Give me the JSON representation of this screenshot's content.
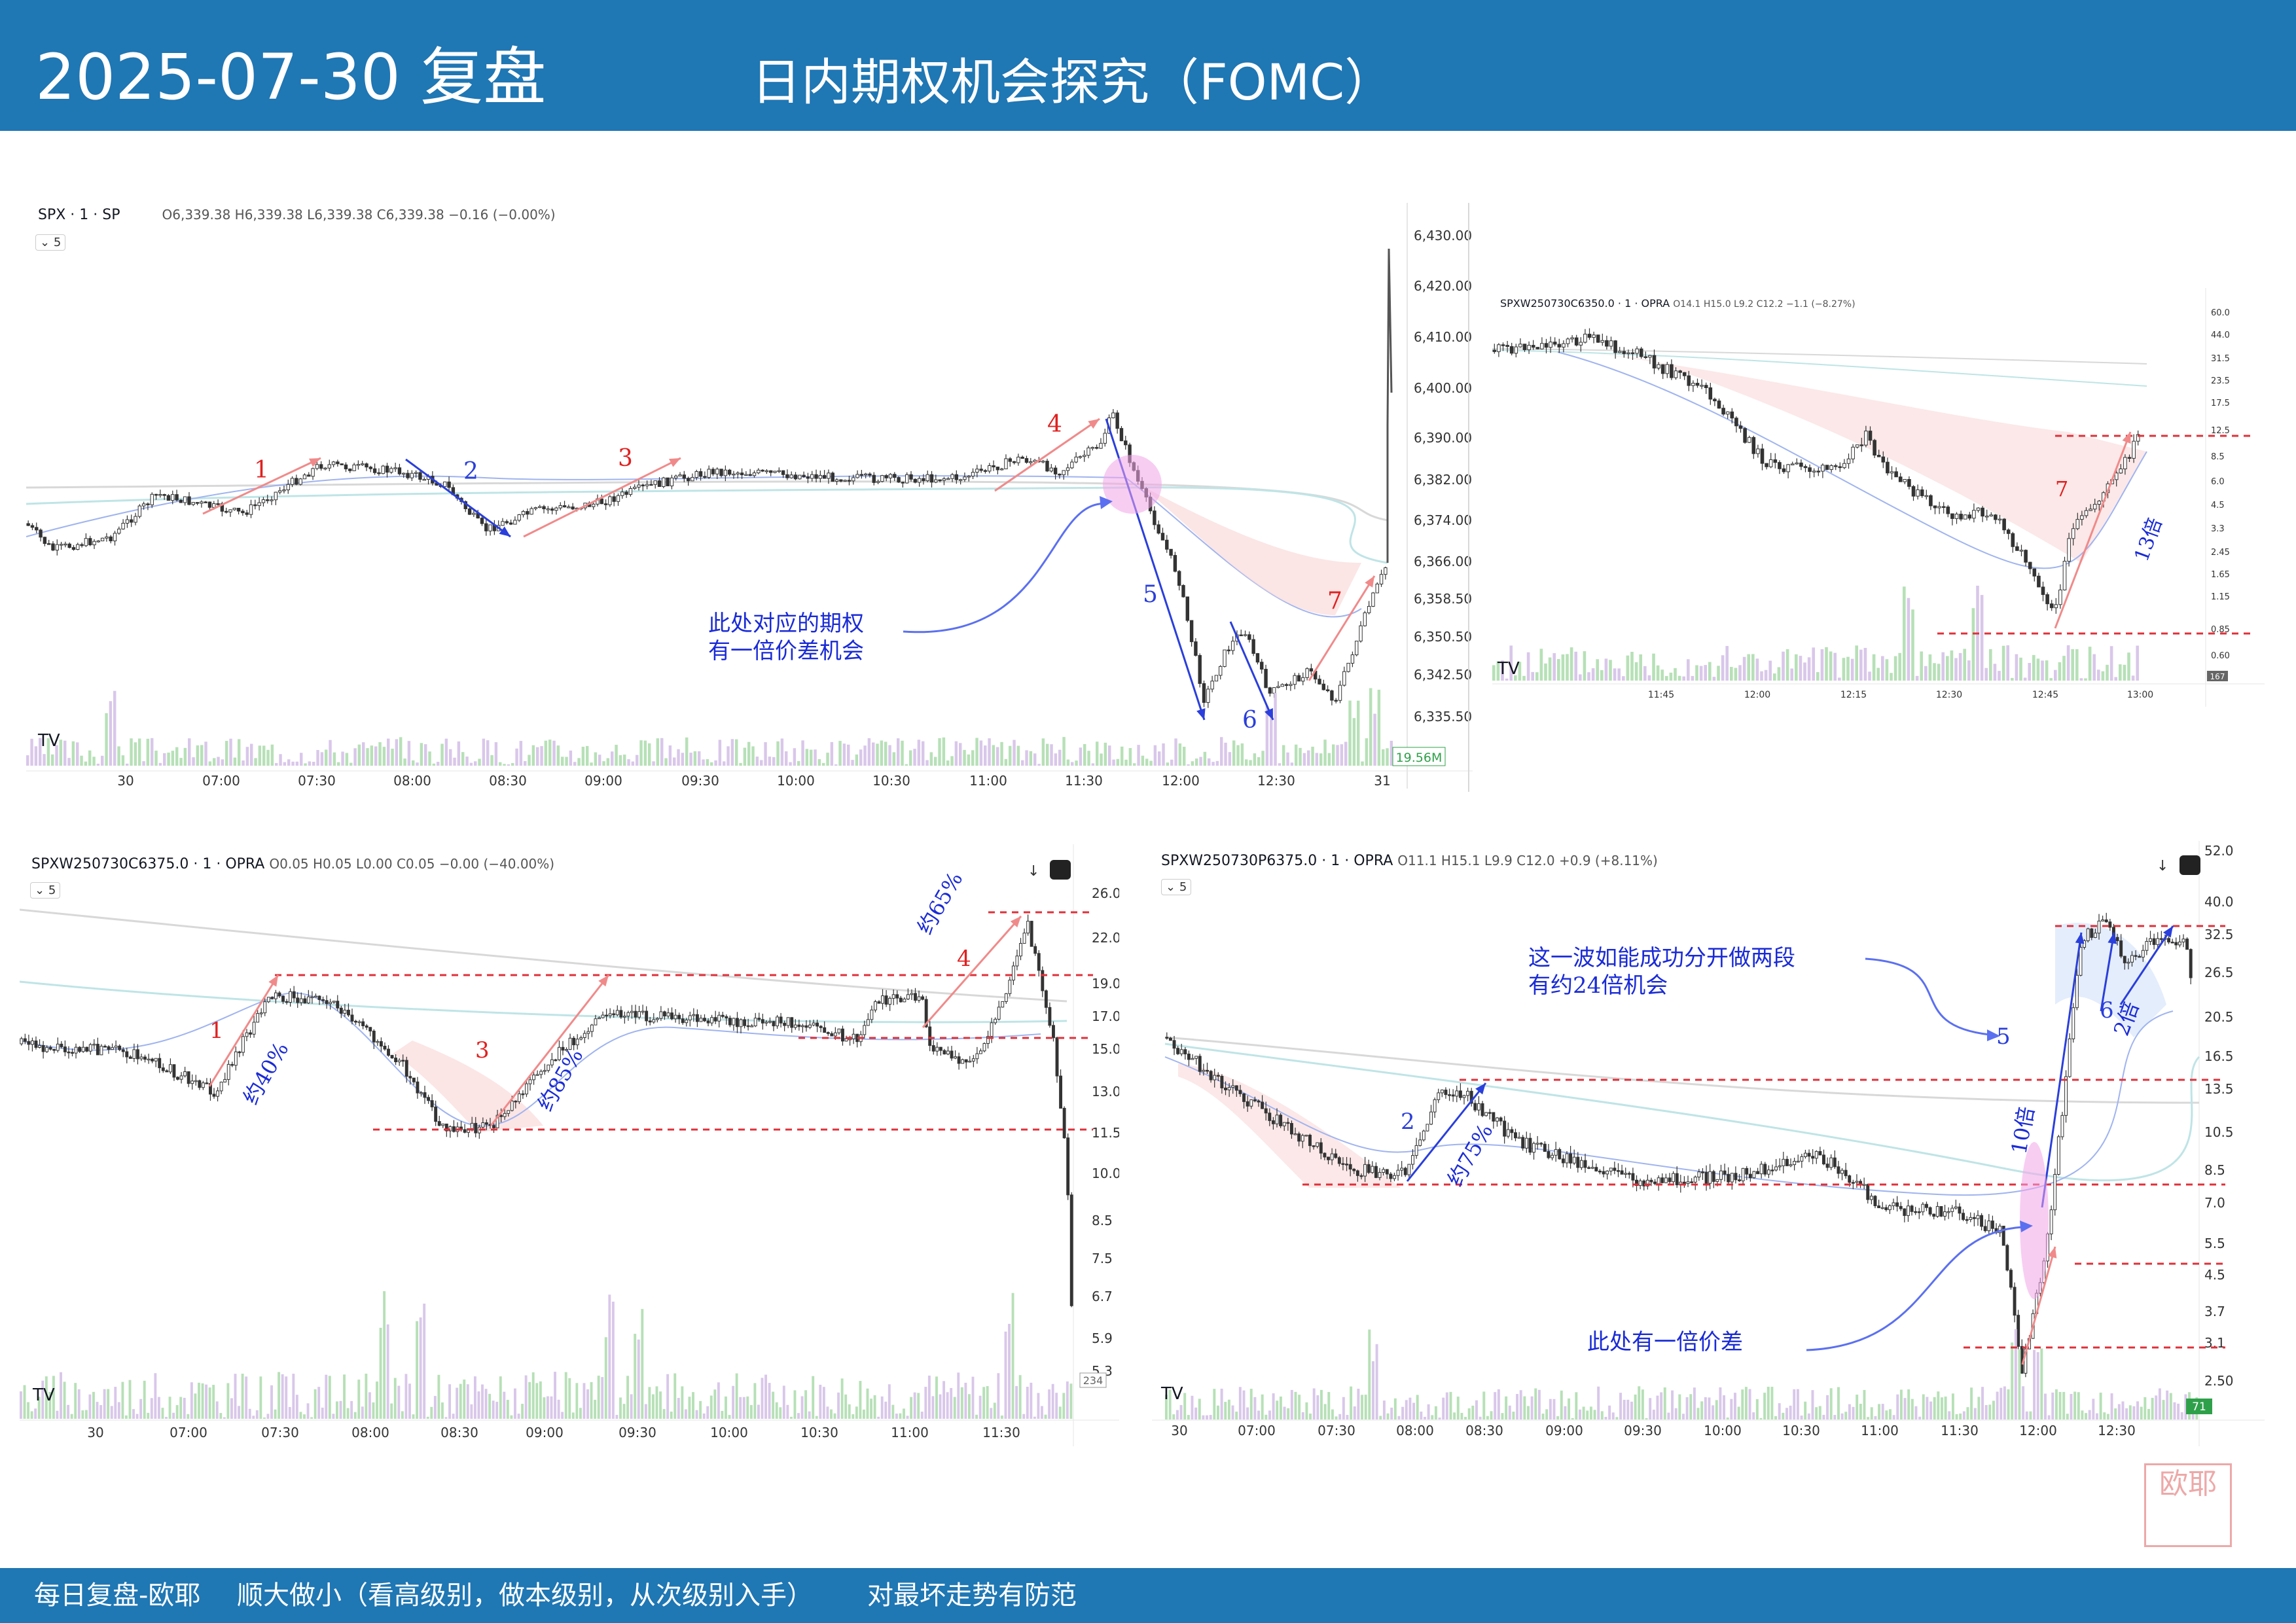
{
  "header": {
    "date": "2025-07-30 复盘",
    "title": "日内期权机会探究（FOMC）"
  },
  "footer": {
    "left": "每日复盘-欧耶",
    "middle": "顺大做小（看高级别，做本级别，从次级别入手）",
    "right": "对最坏走势有防范"
  },
  "seal_text": "欧耶",
  "colors": {
    "brand_blue": "#1f77b4",
    "up_red": "#e05050",
    "down_blue": "#2a3fdb",
    "note_blue": "#1a2bd6"
  },
  "panel_spx": {
    "symbol": "SPX · 1 · SP",
    "ohlc": "O6,339.38 H6,339.38 L6,339.38 C6,339.38 −0.16 (−0.00%)",
    "interval": "5",
    "y_ticks": [
      "6,430.00",
      "6,420.00",
      "6,410.00",
      "6,400.00",
      "6,390.00",
      "6,382.00",
      "6,374.00",
      "6,366.00",
      "6,358.50",
      "6,350.50",
      "6,342.50",
      "6,335.50"
    ],
    "x_ticks": [
      "30",
      "07:00",
      "07:30",
      "08:00",
      "08:30",
      "09:00",
      "09:30",
      "10:00",
      "10:30",
      "11:00",
      "11:30",
      "12:00",
      "12:30",
      "31"
    ],
    "volume_badge": "19.56M",
    "wave_labels": [
      "1",
      "2",
      "3",
      "4",
      "5",
      "6",
      "7"
    ],
    "note": [
      "此处对应的期权",
      "有一倍价差机会"
    ]
  },
  "panel_c6350": {
    "symbol": "SPXW250730C6350.0 · 1 · OPRA",
    "ohlc": "O14.1 H15.0 L9.2 C12.2 −1.1 (−8.27%)",
    "y_ticks": [
      "60.0",
      "44.0",
      "31.5",
      "23.5",
      "17.5",
      "12.5",
      "8.5",
      "6.0",
      "4.5",
      "3.3",
      "2.45",
      "1.65",
      "1.15",
      "0.85",
      "0.60"
    ],
    "x_ticks": [
      "11:45",
      "12:00",
      "12:15",
      "12:30",
      "12:45",
      "13:00"
    ],
    "volume_badge": "167",
    "wave_labels": [
      "7"
    ],
    "multiple": "13倍"
  },
  "panel_c6375": {
    "symbol": "SPXW250730C6375.0 · 1 · OPRA",
    "ohlc": "O0.05 H0.05 L0.00 C0.05 −0.00 (−40.00%)",
    "interval": "5",
    "y_ticks": [
      "26.0",
      "22.0",
      "19.0",
      "17.0",
      "15.0",
      "13.0",
      "11.5",
      "10.0",
      "8.5",
      "7.5",
      "6.7",
      "5.9",
      "5.3"
    ],
    "x_ticks": [
      "30",
      "07:00",
      "07:30",
      "08:00",
      "08:30",
      "09:00",
      "09:30",
      "10:00",
      "10:30",
      "11:00",
      "11:30"
    ],
    "volume_badge": "234",
    "wave_labels": [
      "1",
      "3",
      "4"
    ],
    "pct_labels": [
      "约40%",
      "约85%",
      "约65%"
    ]
  },
  "panel_p6375": {
    "symbol": "SPXW250730P6375.0 · 1 · OPRA",
    "ohlc": "O11.1 H15.1 L9.9 C12.0 +0.9 (+8.11%)",
    "interval": "5",
    "y_ticks": [
      "52.0",
      "40.0",
      "32.5",
      "26.5",
      "20.5",
      "16.5",
      "13.5",
      "10.5",
      "8.5",
      "7.0",
      "5.5",
      "4.5",
      "3.7",
      "3.1",
      "2.50"
    ],
    "x_ticks": [
      "30",
      "07:00",
      "07:30",
      "08:00",
      "08:30",
      "09:00",
      "09:30",
      "10:00",
      "10:30",
      "11:00",
      "11:30",
      "12:00",
      "12:30"
    ],
    "volume_badge": "71",
    "wave_labels": [
      "2",
      "5",
      "6"
    ],
    "pct_labels": [
      "约75%"
    ],
    "multiples": [
      "10倍",
      "2倍"
    ],
    "note_top": [
      "这一波如能成功分开做两段",
      "有约24倍机会"
    ],
    "note_bottom": "此处有一倍价差"
  }
}
